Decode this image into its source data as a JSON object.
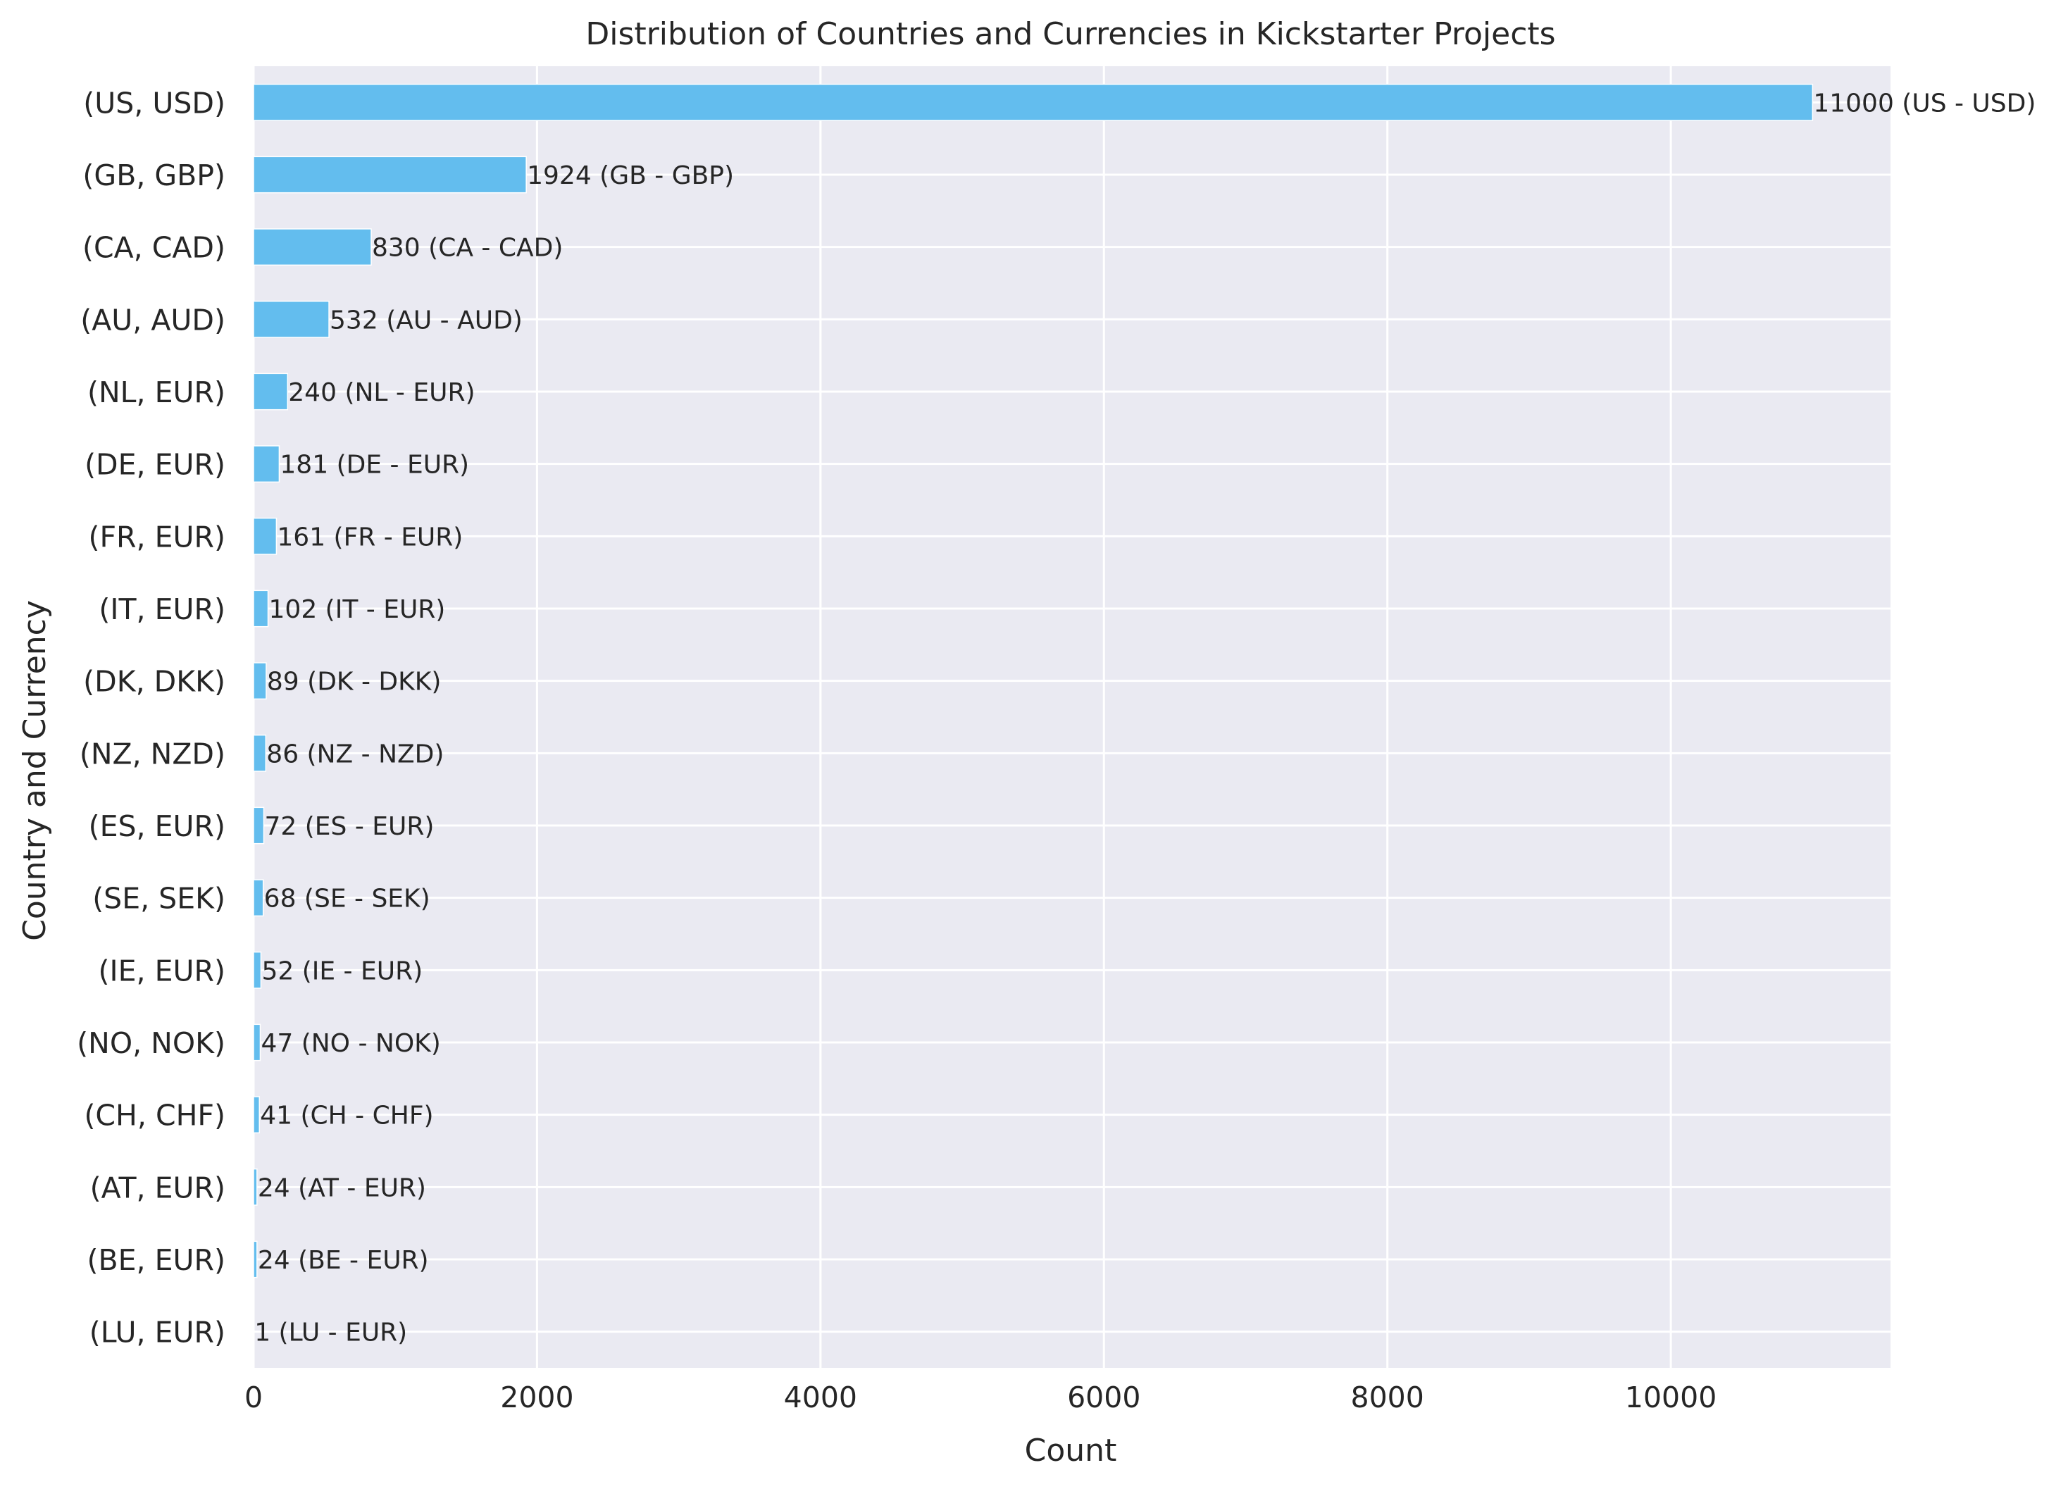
{
  "chart_data": {
    "type": "bar",
    "orientation": "horizontal",
    "title": "Distribution of Countries and Currencies in Kickstarter Projects",
    "xlabel": "Count",
    "ylabel": "Country and Currency",
    "xlim": [
      0,
      11550
    ],
    "x_ticks": [
      0,
      2000,
      4000,
      6000,
      8000,
      10000
    ],
    "grid": true,
    "bar_color": "#63bdee",
    "background_color": "#eaeaf2",
    "grid_color": "#ffffff",
    "categories": [
      "(US, USD)",
      "(GB, GBP)",
      "(CA, CAD)",
      "(AU, AUD)",
      "(NL, EUR)",
      "(DE, EUR)",
      "(FR, EUR)",
      "(IT, EUR)",
      "(DK, DKK)",
      "(NZ, NZD)",
      "(ES, EUR)",
      "(SE, SEK)",
      "(IE, EUR)",
      "(NO, NOK)",
      "(CH, CHF)",
      "(AT, EUR)",
      "(BE, EUR)",
      "(LU, EUR)"
    ],
    "values": [
      11000,
      1924,
      830,
      532,
      240,
      181,
      161,
      102,
      89,
      86,
      72,
      68,
      52,
      47,
      41,
      24,
      24,
      1
    ],
    "data_labels": [
      "11000 (US - USD)",
      "1924 (GB - GBP)",
      "830 (CA - CAD)",
      "532 (AU - AUD)",
      "240 (NL - EUR)",
      "181 (DE - EUR)",
      "161 (FR - EUR)",
      "102 (IT - EUR)",
      "89 (DK - DKK)",
      "86 (NZ - NZD)",
      "72 (ES - EUR)",
      "68 (SE - SEK)",
      "52 (IE - EUR)",
      "47 (NO - NOK)",
      "41 (CH - CHF)",
      "24 (AT - EUR)",
      "24 (BE - EUR)",
      "1 (LU - EUR)"
    ]
  }
}
